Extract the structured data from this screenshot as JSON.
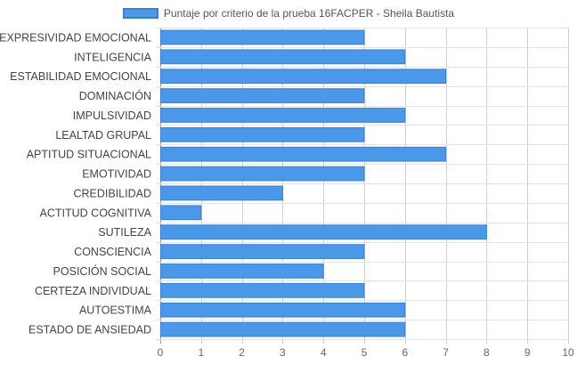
{
  "chart_data": {
    "type": "bar",
    "orientation": "horizontal",
    "title": "",
    "xlabel": "",
    "ylabel": "",
    "xlim": [
      0,
      10
    ],
    "xticks": [
      0,
      1,
      2,
      3,
      4,
      5,
      6,
      7,
      8,
      9,
      10
    ],
    "grid": true,
    "legend_position": "top",
    "colors": {
      "bar_fill": "#4a98ea",
      "bar_border": "#3a7fd6",
      "grid": "#dddddd",
      "axis_text": "#666666"
    },
    "categories": [
      "EXPRESIVIDAD EMOCIONAL",
      "INTELIGENCIA",
      "ESTABILIDAD EMOCIONAL",
      "DOMINACIÓN",
      "IMPULSIVIDAD",
      "LEALTAD GRUPAL",
      "APTITUD SITUACIONAL",
      "EMOTIVIDAD",
      "CREDIBILIDAD",
      "ACTITUD COGNITIVA",
      "SUTILEZA",
      "CONSCIENCIA",
      "POSICIÓN SOCIAL",
      "CERTEZA INDIVIDUAL",
      "AUTOESTIMA",
      "ESTADO DE ANSIEDAD"
    ],
    "series": [
      {
        "name": "Puntaje por criterio de la prueba 16FACPER - Sheila Bautista",
        "values": [
          5,
          6,
          7,
          5,
          6,
          5,
          7,
          5,
          3,
          1,
          8,
          5,
          4,
          5,
          6,
          6
        ]
      }
    ]
  }
}
